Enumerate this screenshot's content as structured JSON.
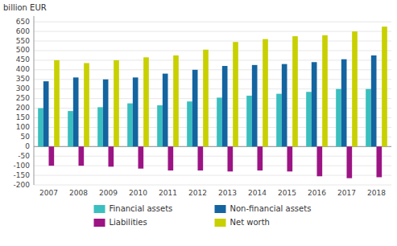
{
  "chart_data": {
    "type": "bar",
    "ylabel": "billion EUR",
    "categories": [
      "2007",
      "2008",
      "2009",
      "2010",
      "2011",
      "2012",
      "2013",
      "2014",
      "2015",
      "2016",
      "2017",
      "2018"
    ],
    "series": [
      {
        "name": "Financial assets",
        "color": "#3BBFBF",
        "values": [
          200,
          185,
          205,
          225,
          215,
          235,
          255,
          265,
          275,
          285,
          300,
          300
        ]
      },
      {
        "name": "Non-financial assets",
        "color": "#1464A0",
        "values": [
          340,
          360,
          350,
          360,
          380,
          400,
          420,
          425,
          430,
          440,
          455,
          475
        ]
      },
      {
        "name": "Liabilities",
        "color": "#9C1484",
        "values": [
          -100,
          -100,
          -105,
          -115,
          -125,
          -125,
          -130,
          -125,
          -130,
          -155,
          -165,
          -160
        ]
      },
      {
        "name": "Net worth",
        "color": "#C8D000",
        "values": [
          450,
          435,
          450,
          465,
          475,
          505,
          545,
          560,
          575,
          580,
          600,
          625
        ]
      }
    ],
    "ylim": [
      -200,
      680
    ],
    "yticks": [
      -200,
      -150,
      -100,
      -50,
      0,
      50,
      100,
      150,
      200,
      250,
      300,
      350,
      400,
      450,
      500,
      550,
      600,
      650
    ],
    "grid": true,
    "legend": "bottom"
  }
}
